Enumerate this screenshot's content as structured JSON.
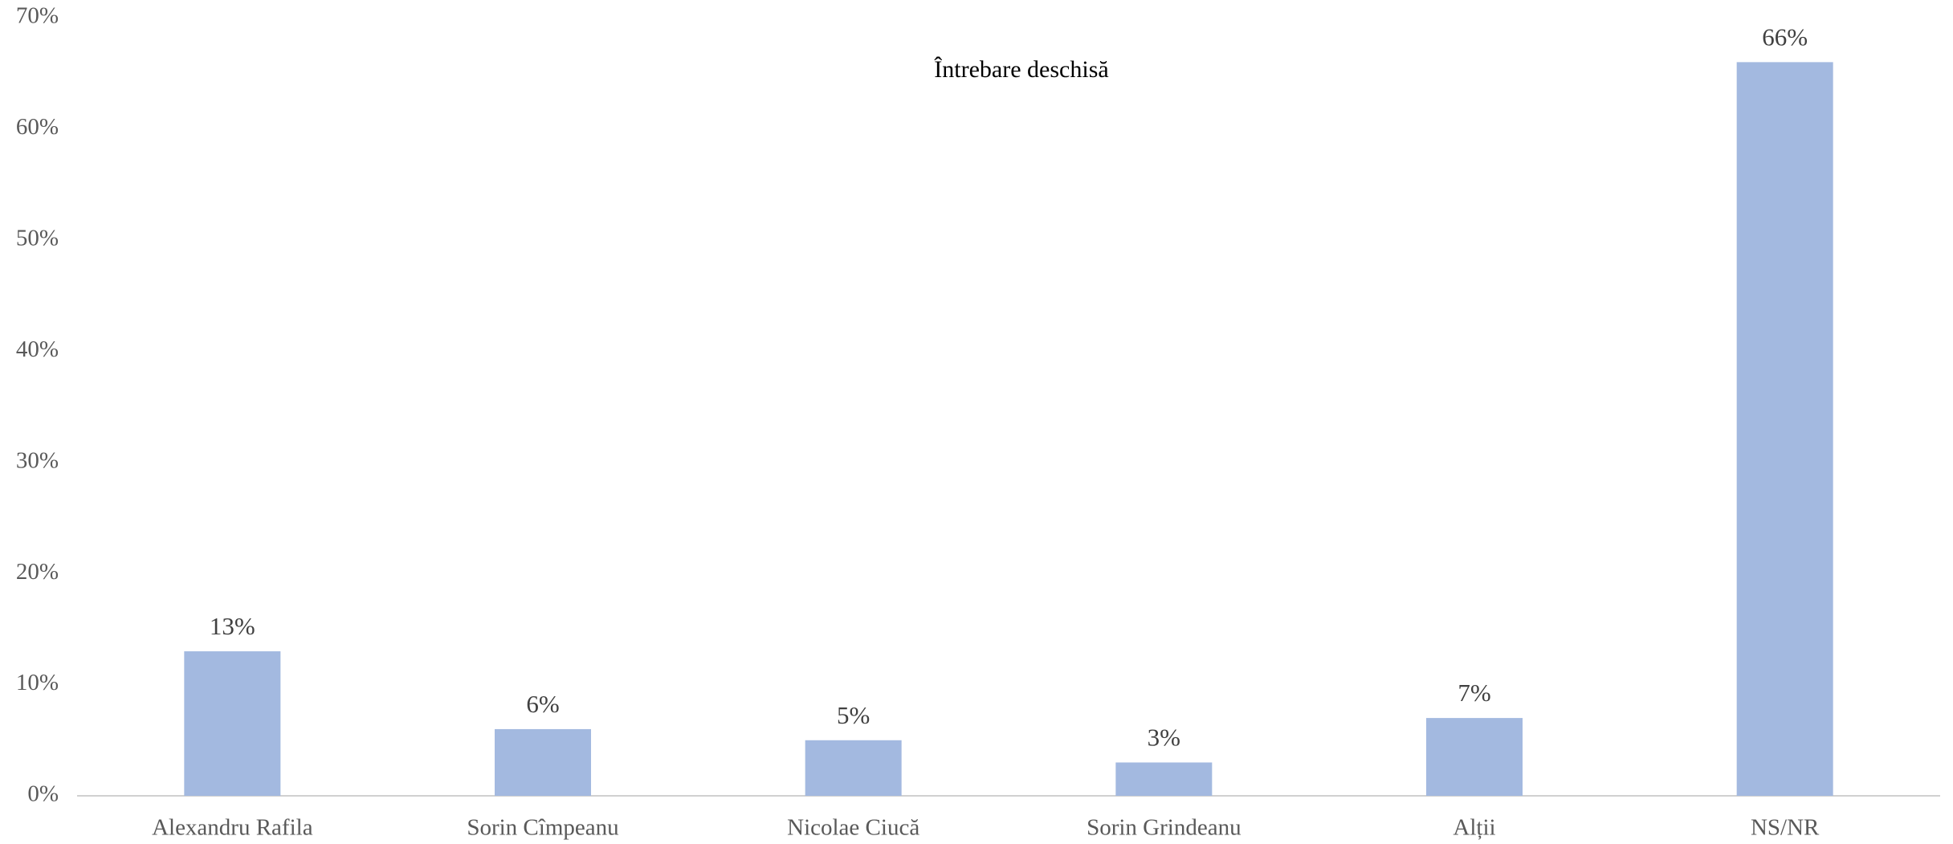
{
  "chart_data": {
    "type": "bar",
    "title": "Întrebare deschisă",
    "categories": [
      "Alexandru Rafila",
      "Sorin Cîmpeanu",
      "Nicolae Ciucă",
      "Sorin Grindeanu",
      "Alții",
      "NS/NR"
    ],
    "values": [
      13,
      6,
      5,
      3,
      7,
      66
    ],
    "value_labels": [
      "13%",
      "6%",
      "5%",
      "3%",
      "7%",
      "66%"
    ],
    "color": "#a3b9e0",
    "ylim": [
      0,
      70
    ],
    "yticks": [
      {
        "value": 0,
        "label": "0%"
      },
      {
        "value": 10,
        "label": "10%"
      },
      {
        "value": 20,
        "label": "20%"
      },
      {
        "value": 30,
        "label": "30%"
      },
      {
        "value": 40,
        "label": "40%"
      },
      {
        "value": 50,
        "label": "50%"
      },
      {
        "value": 60,
        "label": "60%"
      },
      {
        "value": 70,
        "label": "70%"
      }
    ],
    "grid": false
  }
}
